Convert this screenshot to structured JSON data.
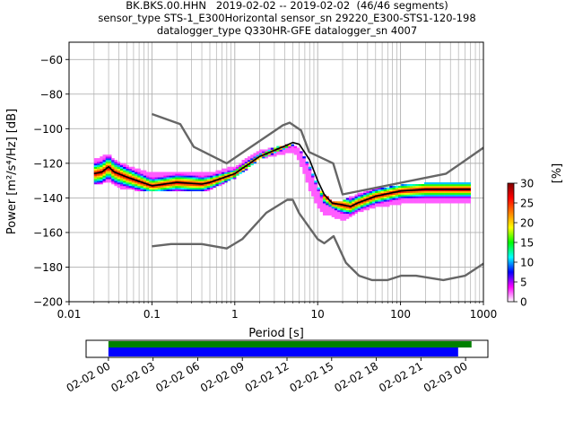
{
  "title_lines": [
    "BK.BKS.00.HHN   2019-02-02 -- 2019-02-02  (46/46 segments)",
    "sensor_type STS-1_E300Horizontal sensor_sn 29220_E300-STS1-120-198",
    "datalogger_type Q330HR-GFE datalogger_sn 4007"
  ],
  "chart_data": [
    {
      "type": "heatmap",
      "xlabel": "Period [s]",
      "ylabel": "Power [m²/s⁴/Hz] [dB]",
      "xscale": "log",
      "xlim": [
        0.01,
        1000
      ],
      "ylim": [
        -200,
        -50
      ],
      "x_ticks": [
        0.01,
        0.1,
        1,
        10,
        100,
        1000
      ],
      "x_tick_labels": [
        "0.01",
        "0.1",
        "1",
        "10",
        "100",
        "1000"
      ],
      "y_ticks": [
        -200,
        -180,
        -160,
        -140,
        -120,
        -100,
        -80,
        -60
      ],
      "grid": true,
      "colorbar": {
        "label": "[%]",
        "range": [
          0,
          30
        ],
        "ticks": [
          "0",
          "5",
          "10",
          "15",
          "20",
          "25",
          "30"
        ],
        "colormap": [
          "#ffffff",
          "#ff00ff",
          "#0000ff",
          "#00ffff",
          "#00ff00",
          "#ffff00",
          "#ff8000",
          "#ff0000",
          "#800000"
        ]
      },
      "noise_models": {
        "color": "#666666",
        "high": {
          "period": [
            0.1,
            0.22,
            0.32,
            0.8,
            3.8,
            4.6,
            6.3,
            7.9,
            15.4,
            20,
            354.8,
            1000
          ],
          "power": [
            -91.5,
            -97.4,
            -110.5,
            -120,
            -98,
            -96.5,
            -101,
            -113.5,
            -120,
            -138,
            -126,
            -111
          ]
        },
        "low": {
          "period": [
            0.1,
            0.17,
            0.4,
            0.8,
            1.24,
            2.4,
            4.3,
            5,
            6,
            10,
            12,
            15.6,
            21.9,
            31.6,
            45,
            70,
            101,
            154,
            328,
            600,
            1000
          ],
          "power": [
            -168,
            -166.7,
            -166.7,
            -169.2,
            -163.7,
            -148.6,
            -141.1,
            -141.1,
            -149,
            -163.8,
            -166.2,
            -162.1,
            -177.5,
            -185,
            -187.5,
            -187.5,
            -185,
            -185,
            -187.5,
            -185,
            -178
          ]
        }
      },
      "pdf_bands": [
        {
          "period": [
            0.02,
            0.03,
            0.04,
            0.1,
            0.3,
            0.5,
            1,
            2,
            4,
            5,
            6,
            8,
            10,
            12,
            15,
            20,
            30,
            50,
            100,
            200,
            700
          ],
          "upper": [
            -118,
            -115,
            -120,
            -126,
            -125,
            -126,
            -122,
            -113,
            -110,
            -109,
            -112,
            -122,
            -134,
            -138,
            -143,
            -142,
            -138,
            -135,
            -133,
            -132,
            -131
          ],
          "lower": [
            -132,
            -130,
            -134,
            -136,
            -136,
            -135,
            -128,
            -117,
            -114,
            -113,
            -118,
            -135,
            -145,
            -150,
            -150,
            -153,
            -148,
            -145,
            -143,
            -143,
            -142
          ]
        }
      ],
      "mode_curve": {
        "color": "#000000",
        "period": [
          0.02,
          0.025,
          0.03,
          0.035,
          0.05,
          0.1,
          0.2,
          0.4,
          0.5,
          1,
          2,
          4,
          5,
          6,
          8,
          10,
          12,
          15,
          20,
          25,
          30,
          50,
          100,
          200,
          700
        ],
        "power": [
          -126,
          -125,
          -122,
          -125,
          -128,
          -133,
          -131,
          -132,
          -131,
          -126,
          -116,
          -110,
          -108,
          -109,
          -118,
          -130,
          -138,
          -143,
          -144,
          -145,
          -143,
          -139,
          -136,
          -135,
          -135
        ]
      }
    },
    {
      "type": "timeline",
      "tick_labels": [
        "02-02 00",
        "02-02 03",
        "02-02 06",
        "02-02 09",
        "02-02 12",
        "02-02 15",
        "02-02 18",
        "02-02 21",
        "02-03 00"
      ],
      "range_hours": [
        -1.5,
        25.5
      ],
      "bars": [
        {
          "color": "#008000",
          "start_hour": 0,
          "end_hour": 24.4
        },
        {
          "color": "#0000ff",
          "start_hour": 0,
          "end_hour": 23.5
        }
      ]
    }
  ]
}
